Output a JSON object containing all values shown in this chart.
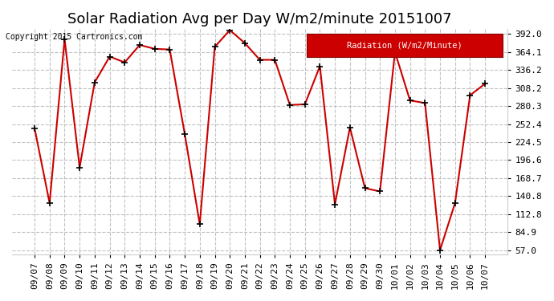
{
  "title": "Solar Radiation Avg per Day W/m2/minute 20151007",
  "copyright_text": "Copyright 2015 Cartronics.com",
  "legend_label": "Radiation (W/m2/Minute)",
  "dates": [
    "09/07",
    "09/08",
    "09/09",
    "09/10",
    "09/11",
    "09/12",
    "09/13",
    "09/14",
    "09/15",
    "09/16",
    "09/17",
    "09/18",
    "09/19",
    "09/20",
    "09/21",
    "09/22",
    "09/23",
    "09/24",
    "09/25",
    "09/26",
    "09/27",
    "09/28",
    "09/29",
    "09/30",
    "10/01",
    "10/02",
    "10/03",
    "10/04",
    "10/05",
    "10/06",
    "10/07"
  ],
  "values": [
    246,
    130,
    384,
    185,
    317,
    357,
    348,
    375,
    369,
    368,
    237,
    97,
    372,
    398,
    378,
    352,
    352,
    282,
    283,
    342,
    128,
    247,
    153,
    148,
    364,
    289,
    285,
    57,
    130,
    297,
    315
  ],
  "ylim_min": 50,
  "ylim_max": 400,
  "yticks": [
    57.0,
    84.9,
    112.8,
    140.8,
    168.7,
    196.6,
    224.5,
    252.4,
    280.3,
    308.2,
    336.2,
    364.1,
    392.0
  ],
  "ytick_labels": [
    "57.0",
    "84.9",
    "112.8",
    "140.8",
    "168.7",
    "196.6",
    "224.5",
    "252.4",
    "280.3",
    "308.2",
    "336.2",
    "364.1",
    "392.0"
  ],
  "line_color": "#cc0000",
  "marker_color": "#000000",
  "bg_color": "#ffffff",
  "grid_color": "#bbbbbb",
  "title_fontsize": 13,
  "tick_fontsize": 8,
  "legend_bg": "#cc0000",
  "legend_text_color": "#ffffff",
  "legend_fontsize": 7.5
}
